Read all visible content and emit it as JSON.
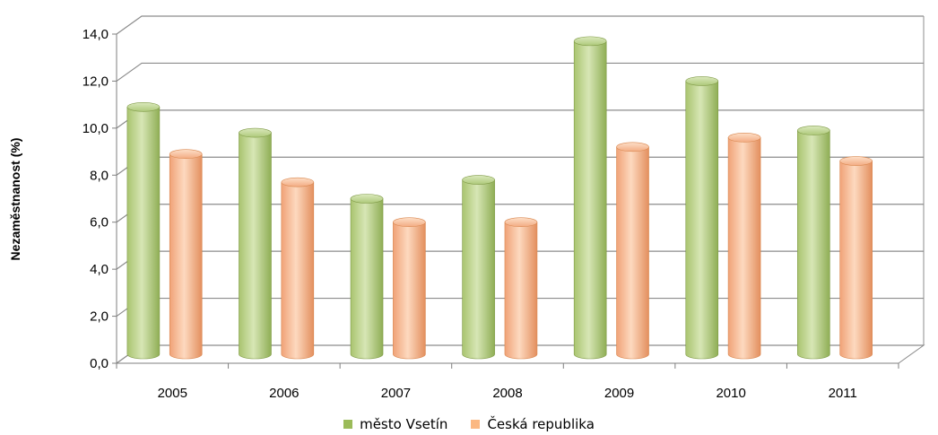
{
  "chart_data": {
    "type": "bar",
    "title": "",
    "xlabel": "",
    "ylabel": "Nezaměstnanost (%)",
    "categories": [
      "2005",
      "2006",
      "2007",
      "2008",
      "2009",
      "2010",
      "2011"
    ],
    "series": [
      {
        "name": "město Vsetín",
        "values": [
          10.9,
          9.8,
          7.0,
          7.8,
          13.7,
          12.0,
          9.9
        ],
        "color": "#9bbb59"
      },
      {
        "name": "Česká republika",
        "values": [
          8.9,
          7.7,
          6.0,
          6.0,
          9.2,
          9.6,
          8.6
        ],
        "color": "#f79646"
      }
    ],
    "ylim": [
      0,
      14
    ],
    "yticks": [
      "0,0",
      "2,0",
      "4,0",
      "6,0",
      "8,0",
      "10,0",
      "12,0",
      "14,0"
    ],
    "grid": true,
    "legend_position": "bottom"
  }
}
